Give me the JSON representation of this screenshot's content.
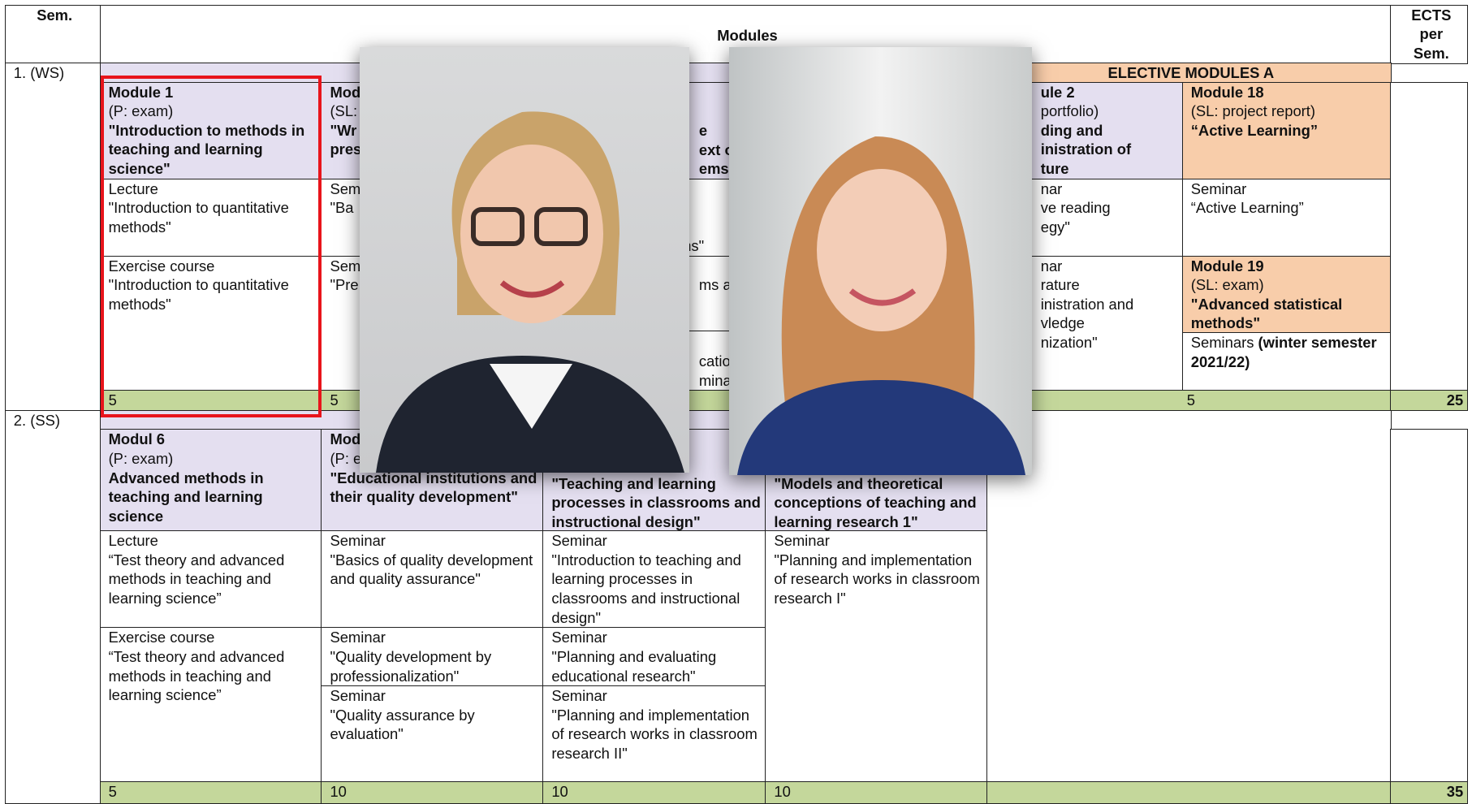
{
  "cells": [
    [
      "Sem."
    ],
    [
      "Modules"
    ],
    [
      "ECTS",
      "per",
      "Sem."
    ],
    [
      "1. (WS)"
    ],
    [],
    [
      "ELECTIVE MODULES A"
    ],
    [
      "Module 1",
      "(P: exam)",
      "\"Introduction to methods in teaching and learning science\""
    ],
    [
      "Lecture",
      "\"Introduction to quantitative methods\""
    ],
    [
      "Exercise course",
      "\"Introduction to quantitative methods\""
    ],
    [
      "Mod",
      "(SL:",
      "\"Wr",
      "pres"
    ],
    [
      "Sem",
      "\"Ba"
    ],
    [
      "Sem",
      "\"Pre"
    ],
    [
      "e",
      "ext o",
      "ems"
    ],
    [
      "ns\""
    ],
    [
      "ms ar"
    ],
    [
      "cation",
      "minar"
    ],
    [],
    [],
    [
      "ule 2",
      "portfolio)",
      "ding and",
      "inistration of",
      "ture"
    ],
    [
      "nar",
      "ve reading",
      "egy\""
    ],
    [
      "nar",
      "rature",
      "inistration and",
      "vledge",
      "nization\""
    ],
    [
      "Module 18",
      "(SL: project report)",
      "“Active Learning”"
    ],
    [
      "Seminar",
      "“Active Learning”"
    ],
    [
      "Module 19",
      "(SL: exam)",
      "\"Advanced statistical methods\""
    ],
    [
      "Seminars ",
      "(winter semester 2021/22)"
    ],
    [],
    [
      "5"
    ],
    [
      "5"
    ],
    [],
    [],
    [
      "5"
    ],
    [
      "25"
    ],
    [
      "2. (SS)"
    ],
    [],
    [
      "Modul 6",
      "(P: exam)",
      "Advanced methods in teaching and learning science"
    ],
    [
      "Lecture",
      "“Test theory and advanced methods in teaching and learning science”"
    ],
    [
      "Exercise course",
      "“Test theory and advanced methods in teaching and learning science”"
    ],
    [
      "Mod",
      "(P: e",
      "\"Educational institutions and their quality development\""
    ],
    [
      "Seminar",
      "\"Basics of quality development and quality assurance\""
    ],
    [
      "Seminar",
      "\"Quality development by professionalization\""
    ],
    [
      "Seminar",
      "\"Quality assurance by evaluation\""
    ],
    [
      "\"Teaching and learning processes in classrooms and instructional design\""
    ],
    [
      "Seminar",
      "\"Introduction to teaching and learning processes in classrooms and instructional design\""
    ],
    [
      "Seminar",
      "\"Planning and evaluating educational research\""
    ],
    [
      "Seminar",
      "\"Planning and implementation of research works in classroom research II\""
    ],
    [
      "\"Models and theoretical conceptions of teaching and learning research 1\""
    ],
    [
      "Seminar",
      "\"Planning and implementation of research works in classroom research I\""
    ],
    [],
    [],
    [
      "5"
    ],
    [
      "10"
    ],
    [
      "10"
    ],
    [
      "10"
    ],
    [],
    [
      "35"
    ]
  ]
}
